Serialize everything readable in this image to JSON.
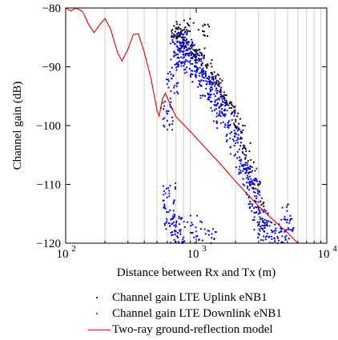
{
  "chart_data": {
    "type": "scatter",
    "xlabel": "Distance between Rx and Tx (m)",
    "ylabel": "Channel gain (dB)",
    "xscale": "log",
    "xlim": [
      100,
      10000
    ],
    "ylim": [
      -120,
      -80
    ],
    "x_ticks": [
      100,
      1000,
      10000
    ],
    "x_tick_labels": [
      [
        "10",
        "2"
      ],
      [
        "10",
        "3"
      ],
      [
        "10",
        "4"
      ]
    ],
    "y_ticks": [
      -80,
      -90,
      -100,
      -110,
      -120
    ],
    "y_tick_labels": [
      "−80",
      "−90",
      "−100",
      "−110",
      "−120"
    ],
    "grid": "vertical log grid",
    "legend_position": "bottom",
    "series": [
      {
        "name": "Channel gain LTE Uplink eNB1",
        "kind": "scatter",
        "color": "#000000",
        "points": [
          [
            690,
            -84
          ],
          [
            720,
            -85
          ],
          [
            760,
            -86
          ],
          [
            800,
            -84.5
          ],
          [
            850,
            -86
          ],
          [
            900,
            -87
          ],
          [
            960,
            -88
          ],
          [
            1000,
            -87.5
          ],
          [
            1050,
            -89
          ],
          [
            1100,
            -88
          ],
          [
            1200,
            -90
          ],
          [
            1300,
            -91
          ],
          [
            1400,
            -92
          ],
          [
            1500,
            -93
          ],
          [
            1600,
            -95
          ],
          [
            1700,
            -96
          ],
          [
            1800,
            -97
          ],
          [
            2000,
            -99
          ],
          [
            2200,
            -101
          ],
          [
            2400,
            -104
          ],
          [
            2600,
            -107
          ],
          [
            2800,
            -110
          ],
          [
            3000,
            -114
          ],
          [
            3200,
            -117
          ],
          [
            1150,
            -84
          ],
          [
            880,
            -83
          ],
          [
            700,
            -83.5
          ]
        ]
      },
      {
        "name": "Channel gain LTE Downlink eNB1",
        "kind": "scatter",
        "color": "#0000ee",
        "points": [
          [
            600,
            -98
          ],
          [
            650,
            -92
          ],
          [
            700,
            -88
          ],
          [
            750,
            -86
          ],
          [
            800,
            -88
          ],
          [
            850,
            -87
          ],
          [
            900,
            -89
          ],
          [
            1000,
            -90
          ],
          [
            1100,
            -91
          ],
          [
            1200,
            -93
          ],
          [
            1300,
            -94
          ],
          [
            1400,
            -95
          ],
          [
            1500,
            -97
          ],
          [
            1600,
            -98
          ],
          [
            1800,
            -100
          ],
          [
            2000,
            -103
          ],
          [
            2200,
            -106
          ],
          [
            2400,
            -108
          ],
          [
            2600,
            -110
          ],
          [
            2800,
            -112
          ],
          [
            3000,
            -115
          ],
          [
            3300,
            -117
          ],
          [
            3600,
            -119
          ],
          [
            4200,
            -120
          ],
          [
            4800,
            -119
          ],
          [
            5000,
            -116
          ],
          [
            620,
            -112
          ],
          [
            640,
            -116
          ],
          [
            700,
            -118
          ],
          [
            800,
            -119
          ],
          [
            1000,
            -118
          ],
          [
            1300,
            -120
          ]
        ]
      },
      {
        "name": "Two-ray ground-reflection model",
        "kind": "line",
        "color": "#e00000",
        "points": [
          [
            100,
            -78.5
          ],
          [
            110,
            -80.5
          ],
          [
            120,
            -79.8
          ],
          [
            135,
            -80.6
          ],
          [
            150,
            -82.8
          ],
          [
            165,
            -84.2
          ],
          [
            180,
            -83
          ],
          [
            200,
            -81.8
          ],
          [
            220,
            -83.5
          ],
          [
            250,
            -87.6
          ],
          [
            270,
            -89
          ],
          [
            300,
            -87
          ],
          [
            330,
            -84.5
          ],
          [
            360,
            -84.4
          ],
          [
            400,
            -87.5
          ],
          [
            450,
            -92
          ],
          [
            500,
            -97.3
          ],
          [
            520,
            -98.4
          ],
          [
            550,
            -95.5
          ],
          [
            580,
            -94.5
          ],
          [
            620,
            -96
          ],
          [
            700,
            -98.5
          ],
          [
            900,
            -101
          ],
          [
            1200,
            -104
          ],
          [
            1600,
            -107
          ],
          [
            2000,
            -109.5
          ],
          [
            2500,
            -111.8
          ],
          [
            3000,
            -113.7
          ],
          [
            4000,
            -116.3
          ],
          [
            5000,
            -118.2
          ],
          [
            6000,
            -120
          ]
        ]
      }
    ]
  }
}
